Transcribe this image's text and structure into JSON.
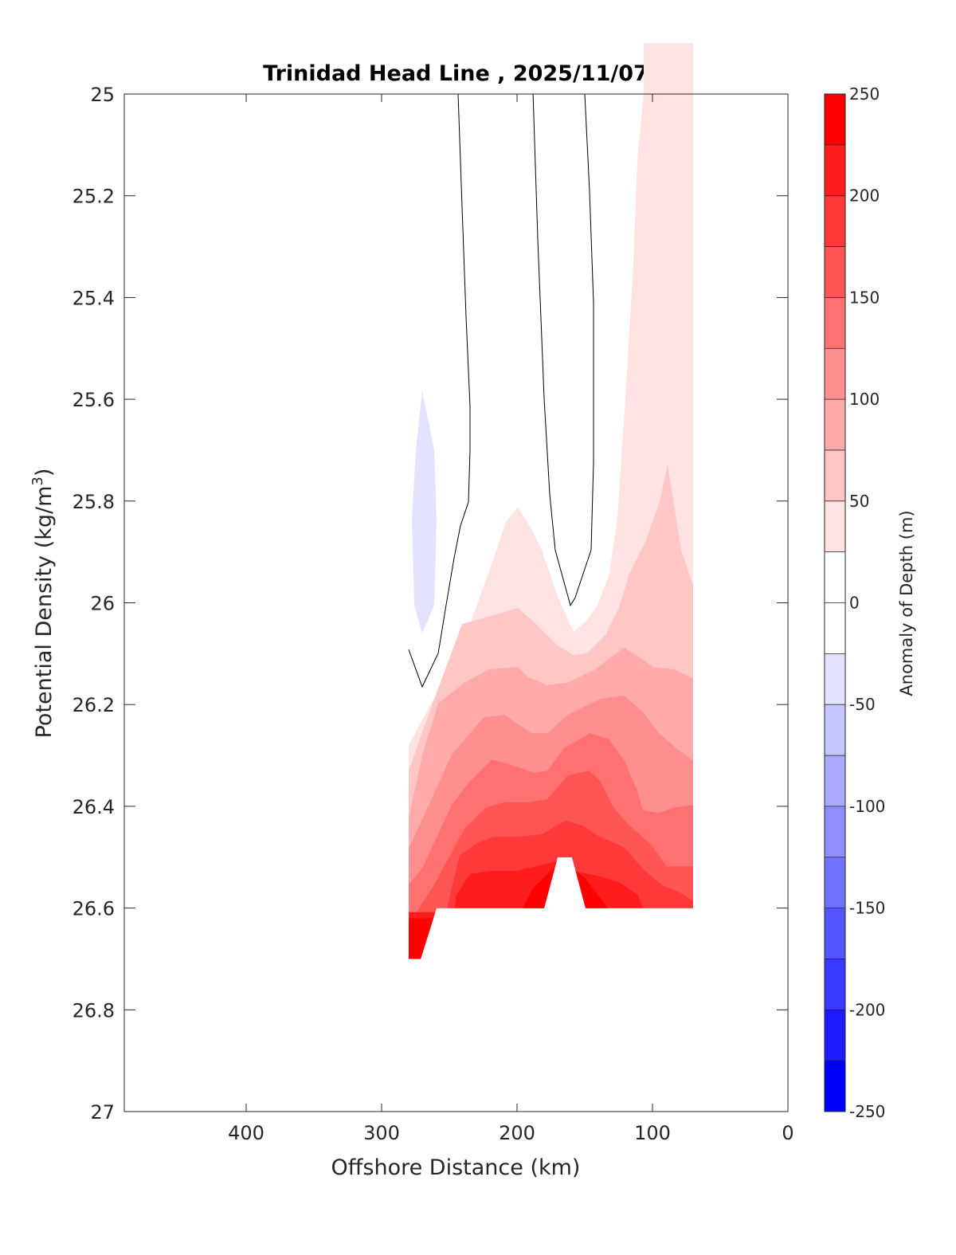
{
  "chart_data": {
    "type": "contourf",
    "title": "Trinidad Head Line , 2025/11/07",
    "xlabel": "Offshore Distance (km)",
    "ylabel_main": "Potential Density (kg/m",
    "ylabel_sup": "3",
    "ylabel_close": ")",
    "xlim": [
      490,
      0
    ],
    "ylim": [
      25,
      27
    ],
    "y_reversed": true,
    "x_reversed": true,
    "xticks": [
      400,
      300,
      200,
      100,
      0
    ],
    "xtick_labels": [
      "400",
      "300",
      "200",
      "100",
      "0"
    ],
    "yticks": [
      25,
      25.2,
      25.4,
      25.6,
      25.8,
      26,
      26.2,
      26.4,
      26.6,
      26.8,
      27
    ],
    "ytick_labels": [
      "25",
      "25.2",
      "25.4",
      "25.6",
      "25.8",
      "26",
      "26.2",
      "26.4",
      "26.6",
      "26.8",
      "27"
    ],
    "colorbar": {
      "label": "Anomaly of Depth (m)",
      "range": [
        -250,
        250
      ],
      "step": 25,
      "ticks": [
        250,
        200,
        150,
        100,
        50,
        0,
        -50,
        -100,
        -150,
        -200,
        -250
      ],
      "tick_labels": [
        "250",
        "200",
        "150",
        "100",
        "50",
        "0",
        "-50",
        "-100",
        "-150",
        "-200",
        "-250"
      ]
    },
    "data_domain": [
      [
        280,
        24.9
      ],
      [
        70,
        24.9
      ],
      [
        70,
        26.6
      ],
      [
        149.4,
        26.6
      ],
      [
        159.4,
        26.5
      ],
      [
        170,
        26.5
      ],
      [
        180,
        26.6
      ],
      [
        259.4,
        26.6
      ],
      [
        271.2,
        26.7
      ],
      [
        280,
        26.7
      ]
    ],
    "filled_contours": [
      {
        "level": 25,
        "line": [
          [
            280,
            26.28
          ],
          [
            264.1,
            26.201
          ],
          [
            252.4,
            26.146
          ],
          [
            240.6,
            26.084
          ],
          [
            228.8,
            25.998
          ],
          [
            217.1,
            25.912
          ],
          [
            208.2,
            25.841
          ],
          [
            199.4,
            25.813
          ],
          [
            190.6,
            25.849
          ],
          [
            181.8,
            25.896
          ],
          [
            172.9,
            25.966
          ],
          [
            167.1,
            26.005
          ],
          [
            158.2,
            26.057
          ],
          [
            149.4,
            26.037
          ],
          [
            140.6,
            26.005
          ],
          [
            131.8,
            25.943
          ],
          [
            125.9,
            25.833
          ],
          [
            120,
            25.598
          ],
          [
            114.1,
            25.332
          ],
          [
            111.2,
            25.128
          ],
          [
            106.5,
            25.0
          ],
          [
            106.5,
            24.9
          ],
          [
            60,
            24.9
          ]
        ]
      },
      {
        "level": 50,
        "line": [
          [
            280,
            26.33
          ],
          [
            268.2,
            26.24
          ],
          [
            240.6,
            26.042
          ],
          [
            209.4,
            26.018
          ],
          [
            199.4,
            26.01
          ],
          [
            185.9,
            26.042
          ],
          [
            170,
            26.084
          ],
          [
            158.2,
            26.103
          ],
          [
            148.2,
            26.099
          ],
          [
            134.7,
            26.063
          ],
          [
            124.7,
            26.01
          ],
          [
            117.1,
            25.943
          ],
          [
            105.3,
            25.88
          ],
          [
            94.7,
            25.802
          ],
          [
            88.8,
            25.728
          ],
          [
            78.8,
            25.896
          ],
          [
            70,
            25.966
          ],
          [
            60,
            25.97
          ]
        ]
      },
      {
        "level": 75,
        "line": [
          [
            280,
            26.423
          ],
          [
            270,
            26.3
          ],
          [
            258.2,
            26.198
          ],
          [
            238.8,
            26.157
          ],
          [
            221.2,
            26.131
          ],
          [
            199.4,
            26.126
          ],
          [
            191.8,
            26.146
          ],
          [
            177.6,
            26.162
          ],
          [
            162.4,
            26.157
          ],
          [
            142.4,
            26.131
          ],
          [
            121.2,
            26.088
          ],
          [
            111.2,
            26.104
          ],
          [
            99.4,
            26.126
          ],
          [
            83.5,
            26.131
          ],
          [
            68.2,
            26.151
          ],
          [
            60,
            26.16
          ]
        ]
      },
      {
        "level": 100,
        "line": [
          [
            280,
            26.483
          ],
          [
            264.1,
            26.392
          ],
          [
            248.2,
            26.298
          ],
          [
            224.7,
            26.225
          ],
          [
            209.4,
            26.22
          ],
          [
            189.4,
            26.256
          ],
          [
            177.6,
            26.256
          ],
          [
            162.4,
            26.22
          ],
          [
            138.8,
            26.189
          ],
          [
            121.2,
            26.182
          ],
          [
            107.1,
            26.214
          ],
          [
            95.3,
            26.256
          ],
          [
            81.8,
            26.287
          ],
          [
            68.2,
            26.314
          ],
          [
            60,
            26.32
          ]
        ]
      },
      {
        "level": 125,
        "line": [
          [
            280,
            26.554
          ],
          [
            270,
            26.522
          ],
          [
            248.2,
            26.397
          ],
          [
            234.7,
            26.35
          ],
          [
            218.8,
            26.308
          ],
          [
            203.5,
            26.319
          ],
          [
            187.6,
            26.334
          ],
          [
            177.6,
            26.33
          ],
          [
            165.9,
            26.287
          ],
          [
            146.5,
            26.256
          ],
          [
            132.9,
            26.267
          ],
          [
            121.2,
            26.308
          ],
          [
            111.2,
            26.37
          ],
          [
            107.1,
            26.408
          ],
          [
            95.3,
            26.413
          ],
          [
            83.5,
            26.402
          ],
          [
            68.2,
            26.397
          ],
          [
            60,
            26.4
          ]
        ]
      },
      {
        "level": 150,
        "line": [
          [
            280,
            26.632
          ],
          [
            261.2,
            26.554
          ],
          [
            238.8,
            26.444
          ],
          [
            222.9,
            26.402
          ],
          [
            209.4,
            26.392
          ],
          [
            191.8,
            26.392
          ],
          [
            177.6,
            26.386
          ],
          [
            162.4,
            26.339
          ],
          [
            146.5,
            26.33
          ],
          [
            138.8,
            26.35
          ],
          [
            128.8,
            26.402
          ],
          [
            118.8,
            26.433
          ],
          [
            101.2,
            26.475
          ],
          [
            89.4,
            26.518
          ],
          [
            68.2,
            26.518
          ],
          [
            60,
            26.52
          ]
        ]
      },
      {
        "level": 175,
        "line": [
          [
            252.4,
            26.608
          ],
          [
            242.4,
            26.496
          ],
          [
            228.8,
            26.471
          ],
          [
            217.1,
            26.46
          ],
          [
            199.4,
            26.46
          ],
          [
            181.8,
            26.455
          ],
          [
            164.1,
            26.428
          ],
          [
            150.6,
            26.439
          ],
          [
            138.8,
            26.46
          ],
          [
            121.2,
            26.48
          ],
          [
            107.1,
            26.522
          ],
          [
            93.5,
            26.554
          ],
          [
            80,
            26.569
          ],
          [
            68.2,
            26.59
          ],
          [
            60,
            26.6
          ]
        ]
      },
      {
        "level": 200,
        "line": [
          [
            246.5,
            26.608
          ],
          [
            244.7,
            26.574
          ],
          [
            234.7,
            26.533
          ],
          [
            218.8,
            26.527
          ],
          [
            201.2,
            26.527
          ],
          [
            185.9,
            26.518
          ],
          [
            170,
            26.507
          ],
          [
            158.2,
            26.527
          ],
          [
            138.8,
            26.538
          ],
          [
            124.7,
            26.549
          ],
          [
            111.2,
            26.574
          ],
          [
            105.3,
            26.608
          ]
        ]
      },
      {
        "level": 225,
        "line": [
          [
            200,
            26.62
          ],
          [
            188,
            26.56
          ],
          [
            172,
            26.52
          ],
          [
            160,
            26.52
          ],
          [
            150,
            26.54
          ],
          [
            133,
            26.6
          ],
          [
            125,
            26.62
          ]
        ]
      },
      {
        "level": -25,
        "closed": true,
        "line": [
          [
            270,
            25.583
          ],
          [
            261.2,
            25.7
          ],
          [
            259.4,
            25.833
          ],
          [
            261.2,
            26.005
          ],
          [
            270,
            26.06
          ],
          [
            275.9,
            26.005
          ],
          [
            277.6,
            25.833
          ],
          [
            274.7,
            25.7
          ]
        ]
      }
    ],
    "zero_contour_lines": [
      [
        [
          243.5,
          25
        ],
        [
          240.6,
          25.222
        ],
        [
          237.6,
          25.442
        ],
        [
          234.7,
          25.614
        ],
        [
          234.7,
          25.7
        ],
        [
          235.9,
          25.802
        ],
        [
          241.8,
          25.849
        ],
        [
          246.5,
          25.912
        ],
        [
          252.4,
          26.005
        ],
        [
          258.2,
          26.099
        ],
        [
          270,
          26.165
        ],
        [
          280,
          26.092
        ]
      ],
      [
        [
          188.2,
          25
        ],
        [
          184.7,
          25.285
        ],
        [
          180,
          25.598
        ],
        [
          175.9,
          25.786
        ],
        [
          171.8,
          25.896
        ],
        [
          160.6,
          26.005
        ],
        [
          157.1,
          25.99
        ],
        [
          145.3,
          25.896
        ],
        [
          143.5,
          25.724
        ],
        [
          143.5,
          25.41
        ],
        [
          146.5,
          25.191
        ],
        [
          150,
          25
        ]
      ]
    ],
    "colors": {
      "neg_max": "#0000ff",
      "zero": "#ffffff",
      "pos_max": "#ff0000",
      "contour_line": "#000000"
    }
  }
}
